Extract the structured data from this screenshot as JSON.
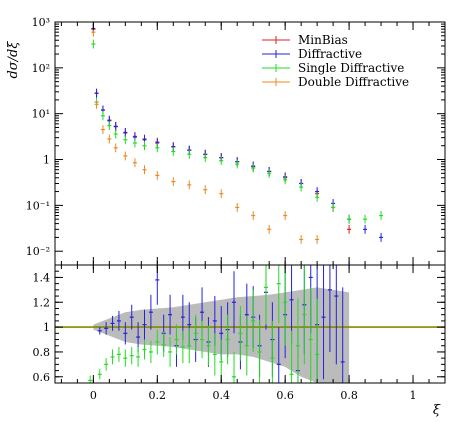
{
  "chart_data": [
    {
      "type": "scatter",
      "panel": "main",
      "ylabel": "dσ/dξ",
      "yscale": "log",
      "ylim": [
        0.005,
        1000
      ],
      "xlim": [
        -0.12,
        1.1
      ],
      "y_ticks": [
        {
          "value": 0.01,
          "label": "10⁻²"
        },
        {
          "value": 0.1,
          "label": "10⁻¹"
        },
        {
          "value": 1,
          "label": "1"
        },
        {
          "value": 10,
          "label": "10¹"
        },
        {
          "value": 100,
          "label": "10²"
        },
        {
          "value": 1000,
          "label": "10³"
        }
      ],
      "legend_position": "top-right",
      "series": [
        {
          "name": "MinBias",
          "color": "#dd2222",
          "x": [
            0,
            0.01,
            0.03,
            0.05,
            0.07,
            0.1,
            0.13,
            0.16,
            0.2,
            0.25,
            0.3,
            0.35,
            0.4,
            0.45,
            0.5,
            0.55,
            0.6,
            0.65,
            0.7,
            0.75,
            0.8
          ],
          "y": [
            700,
            28,
            12,
            7,
            5.2,
            3.8,
            3.2,
            2.8,
            2.4,
            1.9,
            1.6,
            1.3,
            1.1,
            0.9,
            0.7,
            0.55,
            0.4,
            0.3,
            0.18,
            0.09,
            0.03
          ]
        },
        {
          "name": "Diffractive",
          "color": "#2222dd",
          "x": [
            0,
            0.01,
            0.03,
            0.05,
            0.07,
            0.1,
            0.13,
            0.16,
            0.2,
            0.25,
            0.3,
            0.35,
            0.4,
            0.45,
            0.5,
            0.55,
            0.6,
            0.65,
            0.7,
            0.75,
            0.8,
            0.85,
            0.9
          ],
          "y": [
            720,
            28,
            12,
            7.2,
            5.3,
            3.9,
            3.1,
            2.7,
            2.3,
            1.9,
            1.6,
            1.3,
            1.1,
            0.9,
            0.72,
            0.55,
            0.42,
            0.3,
            0.2,
            0.11,
            0.05,
            0.03,
            0.02
          ]
        },
        {
          "name": "Single Diffractive",
          "color": "#22dd22",
          "x": [
            0,
            0.01,
            0.03,
            0.05,
            0.07,
            0.1,
            0.13,
            0.16,
            0.2,
            0.25,
            0.3,
            0.35,
            0.4,
            0.45,
            0.5,
            0.55,
            0.6,
            0.65,
            0.7,
            0.75,
            0.8,
            0.85,
            0.9
          ],
          "y": [
            330,
            18,
            9,
            5.5,
            3.6,
            2.7,
            2.3,
            2,
            1.8,
            1.5,
            1.3,
            1.1,
            0.95,
            0.8,
            0.65,
            0.5,
            0.36,
            0.25,
            0.15,
            0.09,
            0.05,
            0.05,
            0.06
          ]
        },
        {
          "name": "Double Diffractive",
          "color": "#ee8822",
          "x": [
            0,
            0.01,
            0.03,
            0.05,
            0.07,
            0.1,
            0.13,
            0.16,
            0.2,
            0.25,
            0.3,
            0.35,
            0.4,
            0.45,
            0.5,
            0.55,
            0.6,
            0.65,
            0.7
          ],
          "y": [
            600,
            16,
            4.5,
            2.8,
            1.8,
            1.2,
            0.85,
            0.6,
            0.45,
            0.33,
            0.28,
            0.22,
            0.18,
            0.09,
            0.06,
            0.03,
            0.06,
            0.018,
            0.018
          ]
        }
      ]
    },
    {
      "type": "scatter",
      "panel": "ratio",
      "xlabel": "ξ",
      "ylim": [
        0.55,
        1.5
      ],
      "xlim": [
        -0.12,
        1.1
      ],
      "x_ticks": [
        {
          "value": 0,
          "label": "0"
        },
        {
          "value": 0.2,
          "label": "0.2"
        },
        {
          "value": 0.4,
          "label": "0.4"
        },
        {
          "value": 0.6,
          "label": "0.6"
        },
        {
          "value": 0.8,
          "label": "0.8"
        },
        {
          "value": 1,
          "label": "1"
        }
      ],
      "y_ticks": [
        {
          "value": 0.6,
          "label": "0.6"
        },
        {
          "value": 0.8,
          "label": "0.8"
        },
        {
          "value": 1,
          "label": "1"
        },
        {
          "value": 1.2,
          "label": "1.2"
        },
        {
          "value": 1.4,
          "label": "1.4"
        }
      ],
      "reference_line": {
        "value": 1,
        "color": "#888800"
      },
      "band": {
        "color": "#bbbbbb",
        "x": [
          0,
          0.05,
          0.1,
          0.15,
          0.2,
          0.25,
          0.3,
          0.35,
          0.4,
          0.45,
          0.5,
          0.55,
          0.6,
          0.65,
          0.7,
          0.75,
          0.8
        ],
        "lower": [
          0.98,
          0.93,
          0.88,
          0.86,
          0.85,
          0.84,
          0.82,
          0.8,
          0.78,
          0.78,
          0.76,
          0.72,
          0.68,
          0.6,
          0.55,
          0.55,
          0.55
        ],
        "upper": [
          1.02,
          1.07,
          1.12,
          1.14,
          1.15,
          1.16,
          1.18,
          1.2,
          1.22,
          1.24,
          1.25,
          1.26,
          1.28,
          1.3,
          1.32,
          1.3,
          1.28
        ]
      },
      "series": [
        {
          "name": "Diffractive",
          "color": "#2222dd",
          "x": [
            0.02,
            0.04,
            0.06,
            0.08,
            0.1,
            0.12,
            0.14,
            0.16,
            0.18,
            0.2,
            0.22,
            0.24,
            0.26,
            0.28,
            0.3,
            0.32,
            0.34,
            0.36,
            0.38,
            0.4,
            0.42,
            0.44,
            0.46,
            0.48,
            0.5,
            0.52,
            0.54,
            0.56,
            0.58,
            0.6,
            0.62,
            0.64,
            0.66,
            0.68,
            0.7,
            0.72,
            0.74,
            0.76,
            0.78
          ],
          "y": [
            0.97,
            0.99,
            1.03,
            1.05,
            0.95,
            1.08,
            0.92,
            1.02,
            1.12,
            1.38,
            0.95,
            1.1,
            0.85,
            1.08,
            1.02,
            0.9,
            1.12,
            0.88,
            1.05,
            0.95,
            0.98,
            1.2,
            0.88,
            1.1,
            1.08,
            0.85,
            1.28,
            0.9,
            0.7,
            1.1,
            1.22,
            0.65,
            1.18,
            1.4,
            1.02,
            1.08,
            1.3,
            1.25,
            0.72
          ],
          "err": [
            0.03,
            0.05,
            0.06,
            0.08,
            0.09,
            0.1,
            0.12,
            0.12,
            0.14,
            0.2,
            0.15,
            0.16,
            0.17,
            0.18,
            0.18,
            0.18,
            0.2,
            0.2,
            0.2,
            0.22,
            0.22,
            0.25,
            0.22,
            0.25,
            0.25,
            0.25,
            0.3,
            0.3,
            0.3,
            0.35,
            0.35,
            0.35,
            0.4,
            0.45,
            0.45,
            0.5,
            0.5,
            0.55,
            0.6
          ]
        },
        {
          "name": "Single Diffractive",
          "color": "#22dd22",
          "x": [
            -0.01,
            0.02,
            0.04,
            0.06,
            0.08,
            0.1,
            0.12,
            0.14,
            0.16,
            0.18,
            0.2,
            0.22,
            0.24,
            0.26,
            0.28,
            0.3,
            0.32,
            0.34,
            0.36,
            0.38,
            0.4,
            0.42,
            0.44,
            0.46,
            0.48,
            0.5,
            0.52,
            0.54,
            0.56,
            0.58,
            0.6,
            0.62,
            0.64,
            0.66,
            0.68,
            0.7
          ],
          "y": [
            0.57,
            0.62,
            0.7,
            0.76,
            0.78,
            0.75,
            0.77,
            0.76,
            0.82,
            0.8,
            0.88,
            0.86,
            0.8,
            0.9,
            0.84,
            0.85,
            0.95,
            0.9,
            0.85,
            0.78,
            0.72,
            0.9,
            0.6,
            0.95,
            0.85,
            1.05,
            0.8,
            1.32,
            0.75,
            1.35,
            1.2,
            0.62,
            0.85,
            1.1,
            0.9,
            0.78
          ],
          "err": [
            0.04,
            0.04,
            0.05,
            0.06,
            0.06,
            0.07,
            0.07,
            0.08,
            0.08,
            0.09,
            0.1,
            0.1,
            0.12,
            0.12,
            0.13,
            0.14,
            0.15,
            0.15,
            0.16,
            0.17,
            0.18,
            0.2,
            0.2,
            0.22,
            0.24,
            0.25,
            0.26,
            0.3,
            0.3,
            0.32,
            0.35,
            0.35,
            0.38,
            0.4,
            0.42,
            0.45
          ]
        }
      ]
    }
  ]
}
